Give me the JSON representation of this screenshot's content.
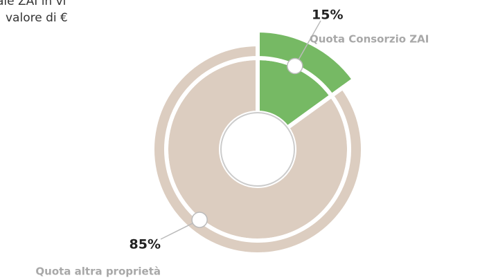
{
  "intro": [
    "ale ZAI in vi",
    "valore di €"
  ],
  "chart_data": {
    "type": "pie",
    "categories": [
      "Quota Consorzio ZAI",
      "Quota altra proprietà"
    ],
    "values": [
      15,
      85
    ],
    "value_labels": [
      "15%",
      "85%"
    ],
    "colors": [
      "#76b964",
      "#dccdc0"
    ]
  }
}
